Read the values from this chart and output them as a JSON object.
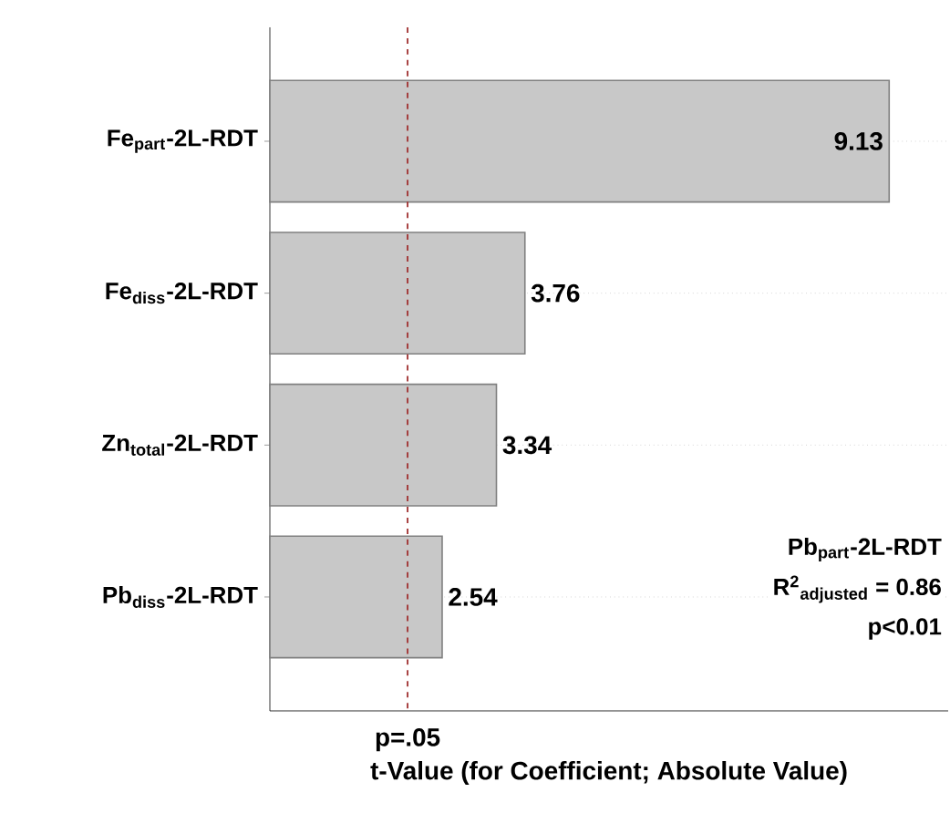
{
  "chart_data": {
    "type": "bar",
    "orientation": "horizontal",
    "categories": [
      "Fe$_{part}$-2L-RDT",
      "Fe$_{diss}$-2L-RDT",
      "Zn$_{total}$-2L-RDT",
      "Pb$_{diss}$-2L-RDT"
    ],
    "values": [
      9.13,
      3.76,
      3.34,
      2.54
    ],
    "color": "#c8c8c8",
    "data_labels": true,
    "xlim": [
      0,
      10
    ],
    "grid": "y",
    "tick_labels": "y",
    "xlabel": "t-Value (for Coefficient; Absolute Value)",
    "ref_lines": [
      {
        "axis": "x",
        "value": 2.03,
        "label": "p=.05",
        "color": "#a03030",
        "line_style": "dashed"
      }
    ],
    "annotations": [
      "Pb$_{part}$-2L-RDT",
      "R$^{2}$$_{adjusted}$ = 0.86",
      "p<0.01"
    ]
  }
}
